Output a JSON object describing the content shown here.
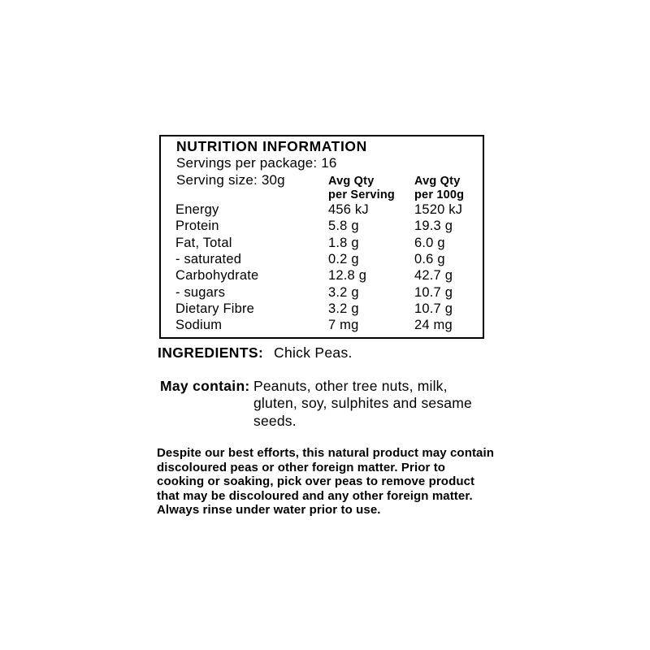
{
  "colors": {
    "text": "#000000",
    "background": "#ffffff",
    "border": "#000000"
  },
  "nutrition_panel": {
    "title": "NUTRITION INFORMATION",
    "servings_per_package": "Servings per package: 16",
    "serving_size": "Serving size: 30g",
    "columns": [
      {
        "line1": "Avg Qty",
        "line2": "per Serving"
      },
      {
        "line1": "Avg Qty",
        "line2": "per 100g"
      }
    ],
    "rows": [
      {
        "label": "Energy",
        "per_serving": "456 kJ",
        "per_100g": "1520 kJ"
      },
      {
        "label": "Protein",
        "per_serving": "5.8 g",
        "per_100g": "19.3 g"
      },
      {
        "label": "Fat, Total",
        "per_serving": "1.8 g",
        "per_100g": "6.0 g"
      },
      {
        "label": "- saturated",
        "per_serving": "0.2 g",
        "per_100g": "0.6 g"
      },
      {
        "label": "Carbohydrate",
        "per_serving": "12.8 g",
        "per_100g": "42.7 g"
      },
      {
        "label": "- sugars",
        "per_serving": "3.2 g",
        "per_100g": "10.7 g"
      },
      {
        "label": "Dietary Fibre",
        "per_serving": "3.2 g",
        "per_100g": "10.7 g"
      },
      {
        "label": "Sodium",
        "per_serving": "7 mg",
        "per_100g": "24 mg"
      }
    ]
  },
  "ingredients": {
    "label": "INGREDIENTS:",
    "value": "Chick Peas."
  },
  "may_contain": {
    "label": "May contain:",
    "lines": [
      "Peanuts, other tree nuts, milk,",
      "gluten, soy, sulphites and sesame",
      "seeds."
    ]
  },
  "disclaimer": {
    "lines": [
      "Despite our best efforts, this natural product may contain",
      "discoloured peas or other foreign matter. Prior to",
      "cooking or soaking, pick over peas to remove product",
      "that may be discoloured and any other foreign matter.",
      "Always rinse under water prior to use."
    ]
  }
}
